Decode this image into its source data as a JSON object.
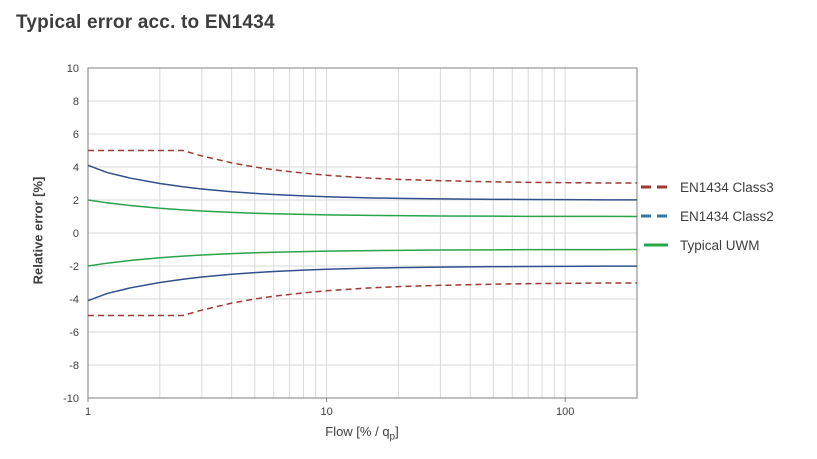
{
  "title": "Typical error acc. to EN1434",
  "chart_data": {
    "type": "line",
    "title": "Typical error acc. to EN1434",
    "xlabel_prefix": "Flow [% / q",
    "xlabel_sub": "p",
    "xlabel_suffix": "]",
    "ylabel": "Relative error [%]",
    "x_scale": "log",
    "xlim": [
      1,
      200
    ],
    "ylim": [
      -10,
      10
    ],
    "x_major_ticks": [
      1,
      10,
      100
    ],
    "x_major_tick_labels": [
      "1",
      "10",
      "100"
    ],
    "x_minor_ticks": [
      2,
      3,
      4,
      5,
      6,
      7,
      8,
      9,
      20,
      30,
      40,
      50,
      60,
      70,
      80,
      90,
      200
    ],
    "y_ticks": [
      10,
      8,
      6,
      4,
      2,
      0,
      -2,
      -4,
      -6,
      -8,
      -10
    ],
    "grid": true,
    "grid_color": "#d9d9d9",
    "axis_color": "#808080",
    "text_color": "#404040",
    "legend_position": "right",
    "note": "All three series are symmetric bands mirrored about zero (upper and lower error limits).",
    "series": [
      {
        "name": "EN1434 Class3",
        "color": "#9e3a32",
        "dash": "6,4",
        "legend_dash": "10,6",
        "mirror": true,
        "x": [
          1,
          1.2,
          1.5,
          2,
          2.5,
          3,
          4,
          5,
          6,
          8,
          10,
          15,
          20,
          30,
          50,
          70,
          100,
          150,
          200
        ],
        "y": [
          5,
          5,
          5,
          5,
          5,
          4.67,
          4.25,
          4.0,
          3.83,
          3.63,
          3.5,
          3.33,
          3.25,
          3.17,
          3.1,
          3.07,
          3.05,
          3.03,
          3.03
        ]
      },
      {
        "name": "EN1434 Class2",
        "color": "#31508c",
        "legend_color": "#2e75b6",
        "dash": "",
        "legend_dash": "10,6",
        "mirror": true,
        "x": [
          1,
          1.2,
          1.5,
          2,
          2.5,
          3,
          4,
          5,
          6,
          8,
          10,
          15,
          20,
          30,
          50,
          70,
          100,
          150,
          200
        ],
        "y": [
          4.1,
          3.67,
          3.33,
          3.0,
          2.8,
          2.67,
          2.5,
          2.4,
          2.33,
          2.25,
          2.2,
          2.13,
          2.1,
          2.07,
          2.04,
          2.03,
          2.02,
          2.01,
          2.01
        ]
      },
      {
        "name": "Typical UWM",
        "color": "#2aa34a",
        "legend_color": "#2aa34a",
        "dash": "",
        "legend_dash": "",
        "mirror": true,
        "x": [
          1,
          1.2,
          1.5,
          2,
          2.5,
          3,
          4,
          5,
          6,
          8,
          10,
          15,
          20,
          30,
          50,
          70,
          100,
          150,
          200
        ],
        "y": [
          2.0,
          1.83,
          1.67,
          1.5,
          1.4,
          1.33,
          1.25,
          1.2,
          1.17,
          1.13,
          1.1,
          1.07,
          1.05,
          1.03,
          1.02,
          1.01,
          1.01,
          1.01,
          1.0
        ]
      }
    ]
  }
}
